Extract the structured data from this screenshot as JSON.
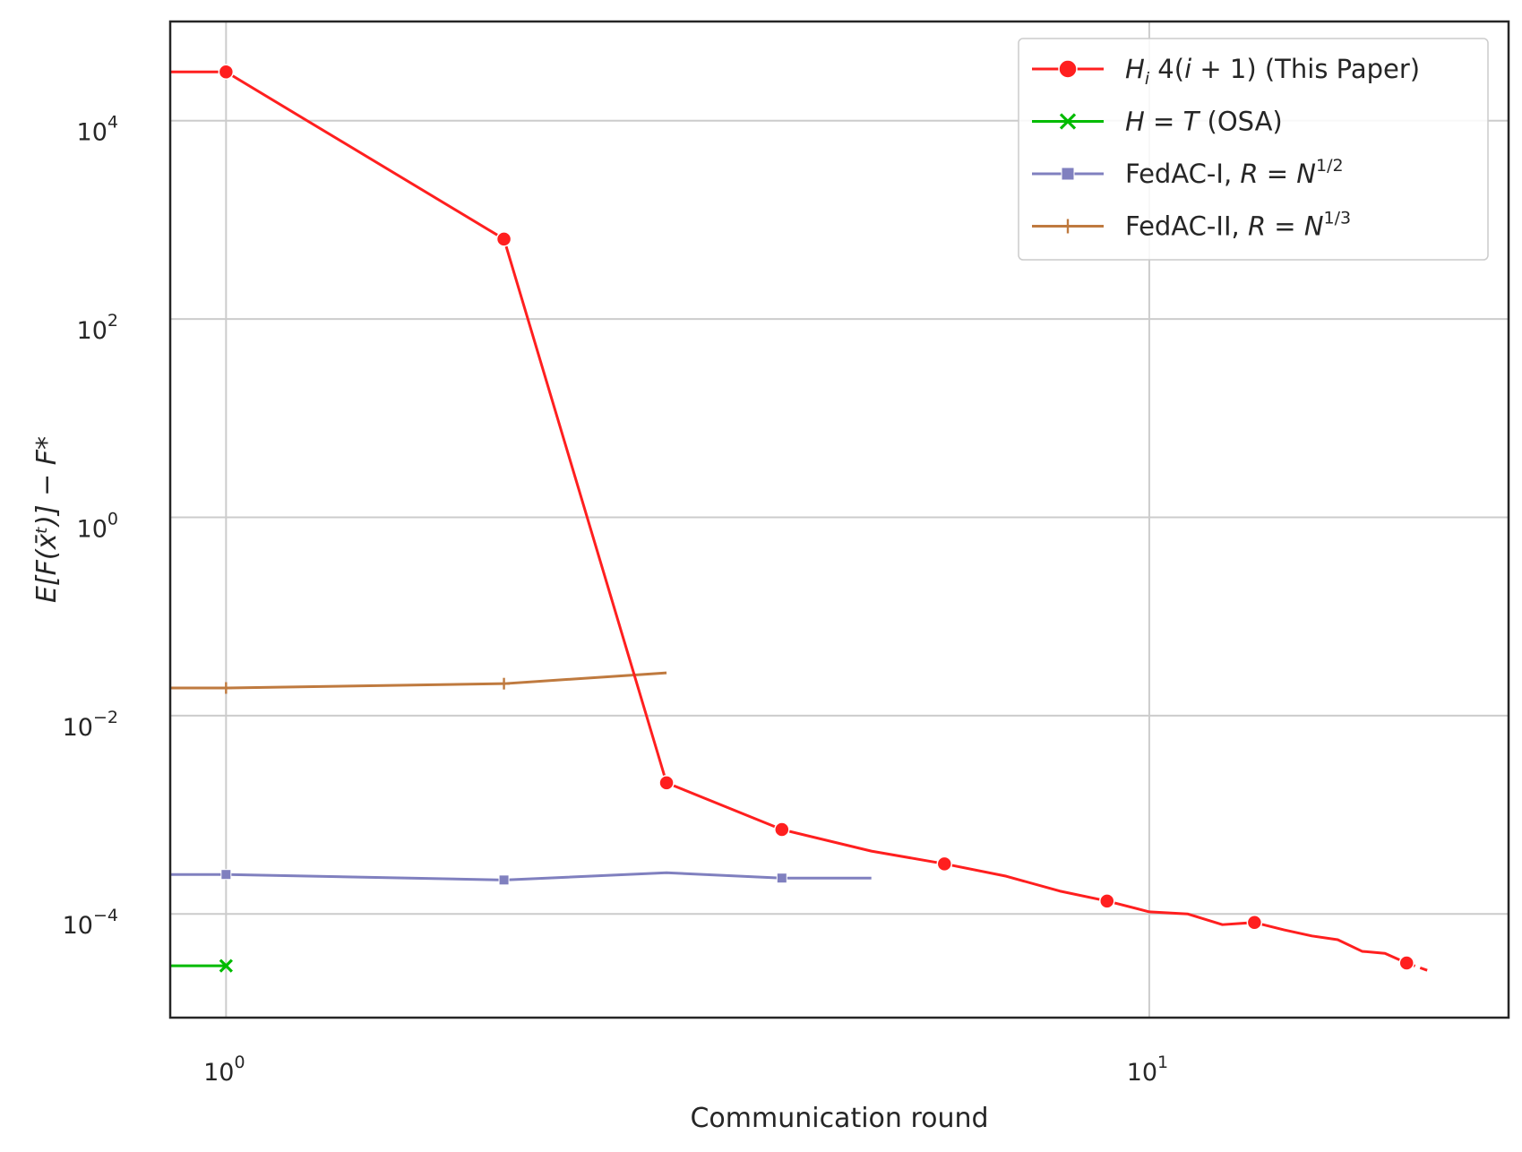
{
  "chart_data": {
    "type": "line",
    "xscale": "log",
    "yscale": "log",
    "xlim": [
      0.87,
      24.5
    ],
    "ylim": [
      9e-06,
      100000
    ],
    "grid": true,
    "legend_position": "top-right",
    "xlabel": "Communication round",
    "ylabel": "E[F(x̄ᵗ)] − F*",
    "x_ticks": [
      {
        "base": "10",
        "exp": "0",
        "value": 1
      },
      {
        "base": "10",
        "exp": "1",
        "value": 10
      }
    ],
    "y_ticks": [
      {
        "base": "10",
        "exp": "4",
        "value": 10000
      },
      {
        "base": "10",
        "exp": "2",
        "value": 100
      },
      {
        "base": "10",
        "exp": "0",
        "value": 1
      },
      {
        "base": "10",
        "exp": "−2",
        "value": 0.01
      },
      {
        "base": "10",
        "exp": "−4",
        "value": 0.0001
      }
    ],
    "series": [
      {
        "name": "Hᵢ 4(i + 1) (This Paper)",
        "color": "#ff1f1f",
        "marker": "circle",
        "points": [
          [
            0.87,
            31000
          ],
          [
            1,
            31000
          ],
          [
            2,
            640
          ],
          [
            3,
            0.0021
          ],
          [
            4,
            0.00071
          ],
          [
            5,
            0.00043
          ],
          [
            6,
            0.00032
          ],
          [
            7,
            0.00024
          ],
          [
            8,
            0.00017
          ],
          [
            9,
            0.000135
          ],
          [
            10,
            0.000105
          ],
          [
            11,
            0.0001
          ],
          [
            12,
            7.8e-05
          ],
          [
            13,
            8.2e-05
          ],
          [
            14,
            6.9e-05
          ],
          [
            15,
            6e-05
          ],
          [
            16,
            5.5e-05
          ],
          [
            17,
            4.2e-05
          ],
          [
            18,
            4e-05
          ],
          [
            19,
            3.2e-05
          ],
          [
            20,
            2.7e-05
          ]
        ],
        "marker_points": [
          [
            1,
            31000
          ],
          [
            2,
            640
          ],
          [
            3,
            0.0021
          ],
          [
            4,
            0.00071
          ],
          [
            6,
            0.00032
          ],
          [
            9,
            0.000135
          ],
          [
            13,
            8.2e-05
          ],
          [
            19,
            3.2e-05
          ]
        ],
        "dashed_tail": true
      },
      {
        "name": "H = T (OSA)",
        "color": "#00bb00",
        "marker": "x",
        "points": [
          [
            0.87,
            3e-05
          ],
          [
            1,
            3e-05
          ]
        ],
        "marker_points": [
          [
            1,
            3e-05
          ]
        ]
      },
      {
        "name": "FedAC-I, R = N^1/2",
        "color": "#8080bf",
        "marker": "square",
        "points": [
          [
            0.87,
            0.00025
          ],
          [
            1,
            0.00025
          ],
          [
            2,
            0.00022
          ],
          [
            3,
            0.00026
          ],
          [
            4,
            0.00023
          ],
          [
            5,
            0.00023
          ]
        ],
        "marker_points": [
          [
            1,
            0.00025
          ],
          [
            2,
            0.00022
          ],
          [
            4,
            0.00023
          ]
        ]
      },
      {
        "name": "FedAC-II, R = N^1/3",
        "color": "#bf7a3f",
        "marker": "plus",
        "points": [
          [
            0.87,
            0.019
          ],
          [
            1,
            0.019
          ],
          [
            2,
            0.021
          ],
          [
            3,
            0.027
          ]
        ],
        "marker_points": [
          [
            1,
            0.019
          ],
          [
            2,
            0.021
          ]
        ]
      }
    ],
    "legend": [
      {
        "italic_a": "H",
        "sub": "i",
        "rest": " 4(",
        "italic_b": "i",
        "rest2": " + 1) (This Paper)"
      },
      {
        "italic_a": "H",
        "rest": " = ",
        "italic_b": "T",
        "rest2": " (OSA)"
      },
      {
        "plain": "FedAC-I, ",
        "italic_a": "R",
        "rest": " = ",
        "italic_b": "N",
        "sup": "1/2"
      },
      {
        "plain": "FedAC-II, ",
        "italic_a": "R",
        "rest": " = ",
        "italic_b": "N",
        "sup": "1/3"
      }
    ]
  }
}
